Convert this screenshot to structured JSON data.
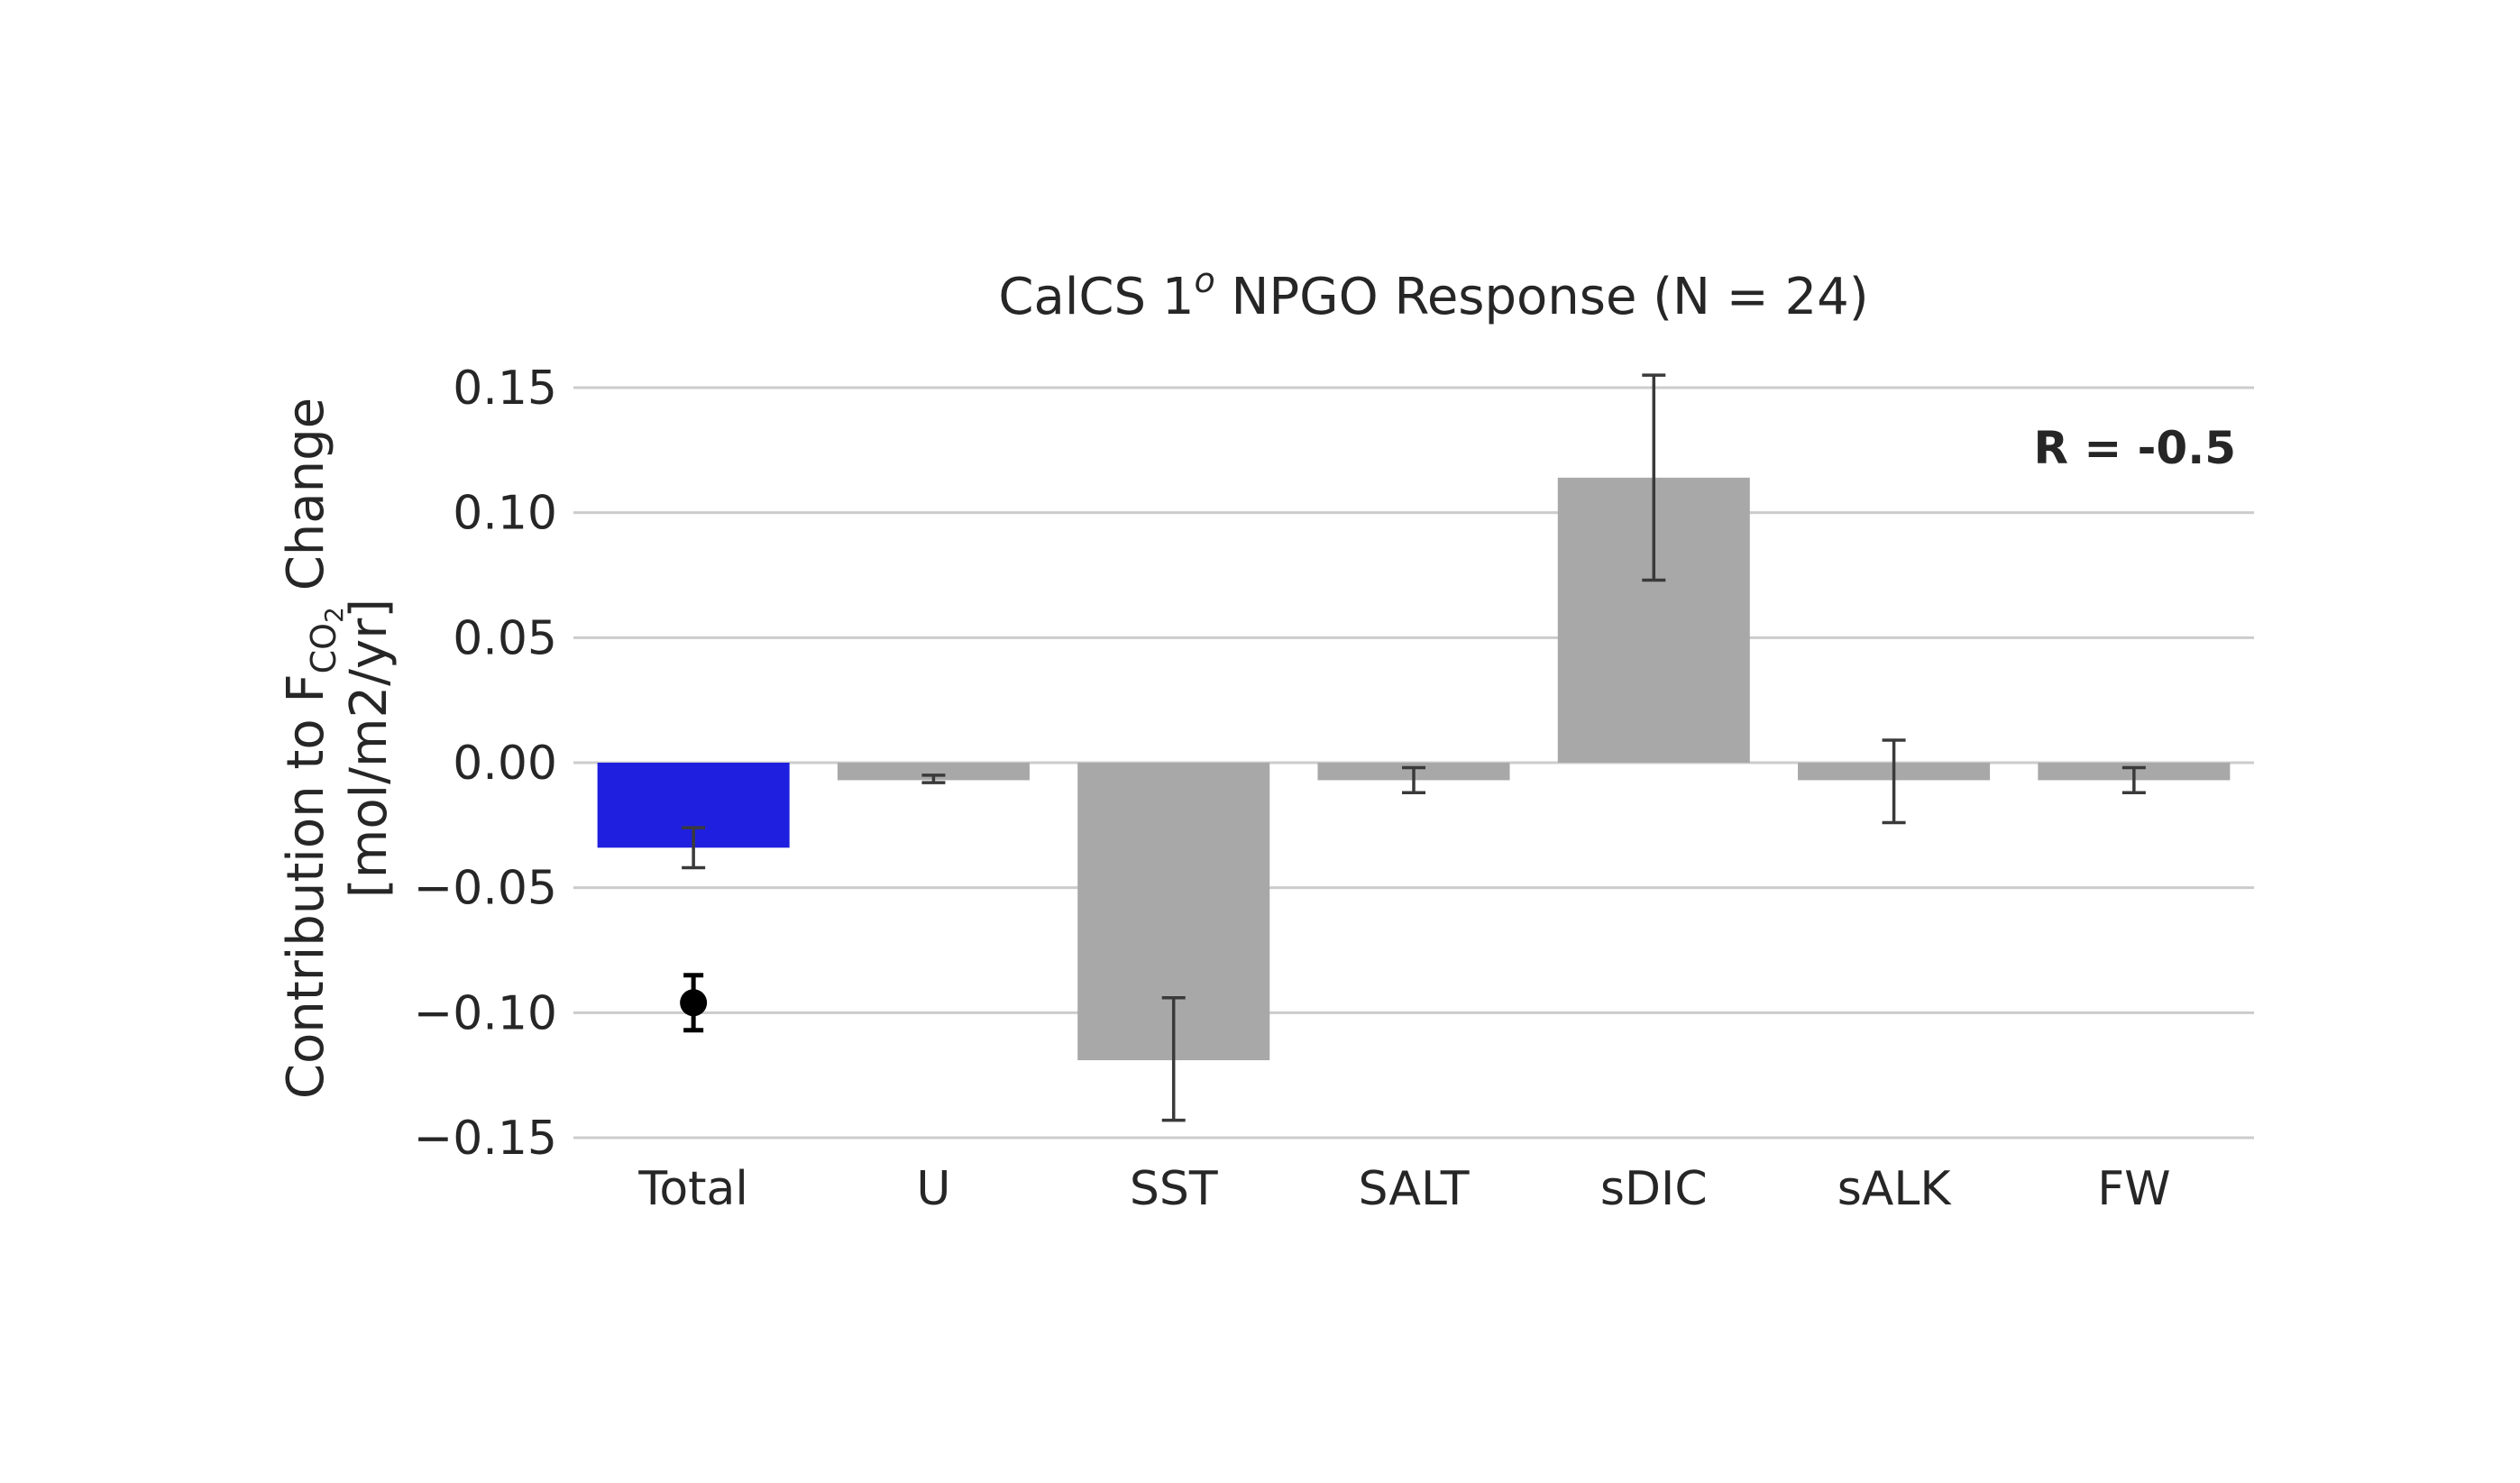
{
  "chart_data": {
    "type": "bar",
    "title": "CalCS 1",
    "title_superscript": "o",
    "title_rest": " NPGO Response (N = 24)",
    "ylabel_line1_main": "Contribution to F",
    "ylabel_line1_sub": "CO",
    "ylabel_line1_subsub": "2",
    "ylabel_line1_end": " Change",
    "ylabel_line2": "[mol/m2/yr]",
    "annotation": "R = -0.5",
    "categories": [
      "Total",
      "U",
      "SST",
      "SALT",
      "sDIC",
      "sALK",
      "FW"
    ],
    "values": [
      -0.034,
      -0.007,
      -0.119,
      -0.007,
      0.114,
      -0.007,
      -0.007
    ],
    "error_low": [
      -0.042,
      -0.008,
      -0.143,
      -0.012,
      0.073,
      -0.024,
      -0.012
    ],
    "error_high": [
      -0.026,
      -0.005,
      -0.094,
      -0.002,
      0.155,
      0.009,
      -0.002
    ],
    "bar_colors": [
      "#1f1fe0",
      "#a8a8a8",
      "#a8a8a8",
      "#a8a8a8",
      "#a8a8a8",
      "#a8a8a8",
      "#a8a8a8"
    ],
    "point": {
      "category": "Total",
      "value": -0.096,
      "error_low": -0.107,
      "error_high": -0.085,
      "color": "#000000"
    },
    "ylim": [
      -0.15,
      0.15
    ],
    "yticks": [
      0.15,
      0.1,
      0.05,
      0.0,
      -0.05,
      -0.1,
      -0.15
    ],
    "ytick_labels": [
      "0.15",
      "0.10",
      "0.05",
      "0.00",
      "−0.05",
      "−0.10",
      "−0.15"
    ],
    "grid": true
  }
}
